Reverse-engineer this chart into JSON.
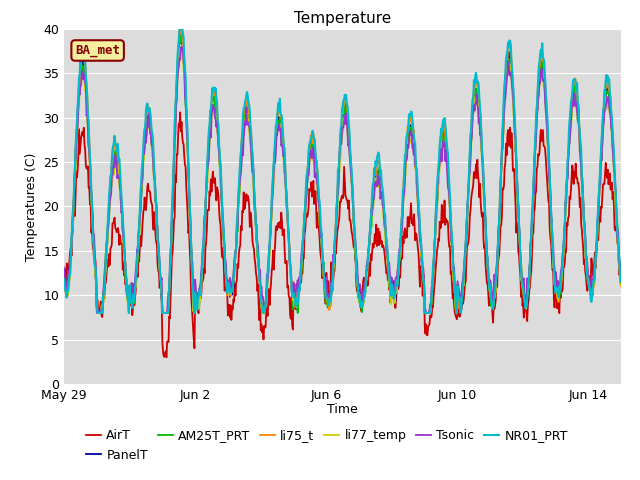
{
  "title": "Temperature",
  "ylabel": "Temperatures (C)",
  "xlabel": "Time",
  "ylim": [
    0,
    40
  ],
  "bg_color": "#dcdcdc",
  "fig_bg_color": "#ffffff",
  "annotation_text": "BA_met",
  "annotation_bg": "#f5f0a0",
  "annotation_fc": "#8b0000",
  "annotation_ec": "#8b0000",
  "legend_entries": [
    "AirT",
    "PanelT",
    "AM25T_PRT",
    "li75_t",
    "li77_temp",
    "Tsonic",
    "NR01_PRT"
  ],
  "line_colors": [
    "#cc0000",
    "#000099",
    "#00bb00",
    "#ff8800",
    "#cccc00",
    "#9933cc",
    "#00bbcc"
  ],
  "line_widths": [
    1.3,
    1.3,
    1.3,
    1.3,
    1.3,
    1.3,
    1.5
  ],
  "xtick_labels": [
    "May 29",
    "Jun 2",
    "Jun 6",
    "Jun 10",
    "Jun 14"
  ],
  "xtick_positions": [
    0,
    4,
    8,
    12,
    16
  ],
  "total_days": 17,
  "grid_color": "#ffffff",
  "title_fontsize": 11,
  "label_fontsize": 9,
  "tick_fontsize": 9,
  "legend_fontsize": 9
}
